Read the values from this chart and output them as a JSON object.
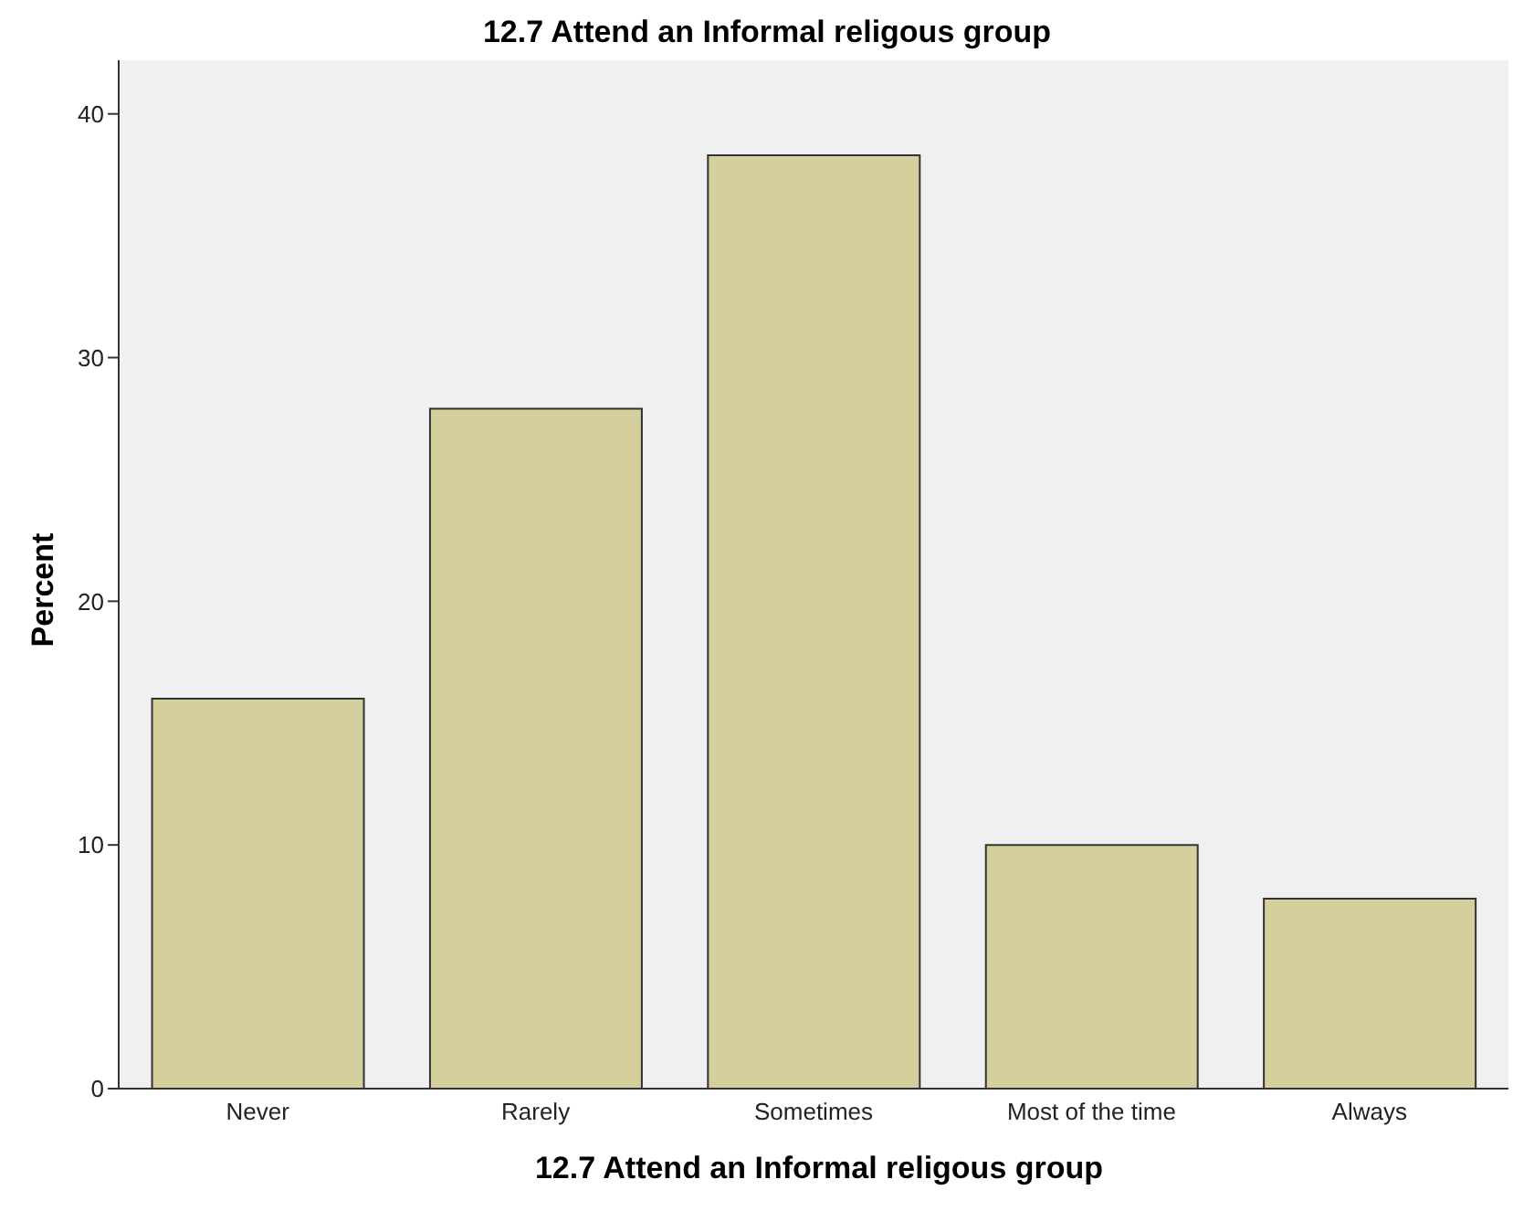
{
  "chart_data": {
    "type": "bar",
    "title": "12.7 Attend an Informal religous group",
    "xlabel": "12.7 Attend an Informal religous group",
    "ylabel": "Percent",
    "categories": [
      "Never",
      "Rarely",
      "Sometimes",
      "Most of the time",
      "Always"
    ],
    "values": [
      16.0,
      27.9,
      38.3,
      10.0,
      7.8
    ],
    "color": "#d4cf9c",
    "ylim": [
      0,
      42.2
    ],
    "yticks": [
      0,
      10,
      20,
      30,
      40
    ],
    "grid": false
  }
}
